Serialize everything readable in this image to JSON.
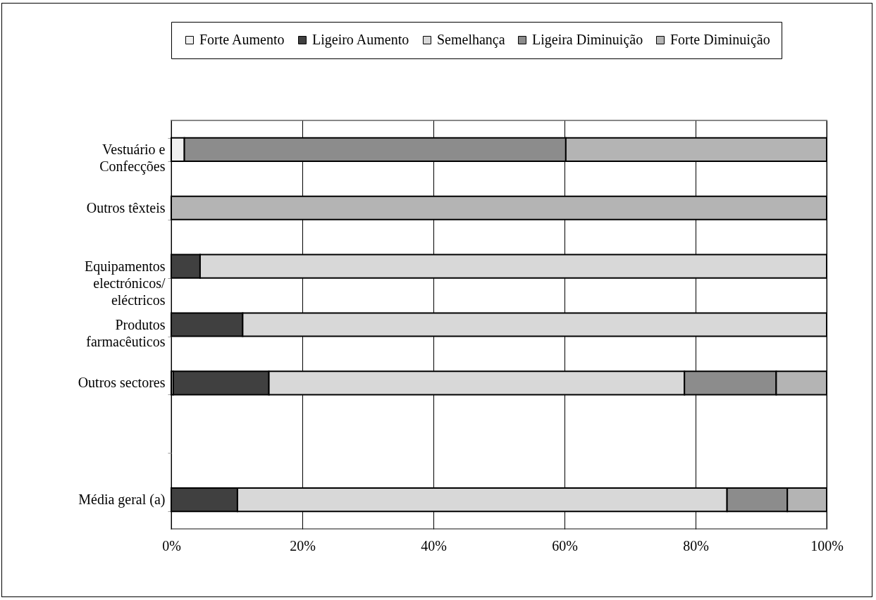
{
  "chart_data": {
    "type": "bar",
    "orientation": "horizontal",
    "stacked": true,
    "categories": [
      "Vestuário e Confecções",
      "Outros têxteis",
      "Equipamentos electrónicos/ eléctricos",
      "Produtos farmacêuticos",
      "Outros sectores",
      null,
      "Média geral (a)"
    ],
    "series": [
      {
        "name": "Forte Aumento",
        "color": "#f0f0f0",
        "values": [
          2,
          0,
          0,
          0,
          0.3,
          null,
          0
        ]
      },
      {
        "name": "Ligeiro Aumento",
        "color": "#404040",
        "values": [
          0,
          0,
          4.4,
          10.9,
          14.6,
          null,
          10.1
        ]
      },
      {
        "name": "Semelhança",
        "color": "#d8d8d8",
        "values": [
          0,
          0,
          95.6,
          89.1,
          63.4,
          null,
          74.7
        ]
      },
      {
        "name": "Ligeira Diminuição",
        "color": "#8c8c8c",
        "values": [
          58.2,
          0,
          0,
          0,
          14,
          null,
          9.2
        ]
      },
      {
        "name": "Forte Diminuição",
        "color": "#b4b4b4",
        "values": [
          39.8,
          100,
          0,
          0,
          7.7,
          null,
          6
        ]
      }
    ],
    "xlim": [
      0,
      100
    ],
    "xticks": [
      {
        "value": 0,
        "label": "0%"
      },
      {
        "value": 20,
        "label": "20%"
      },
      {
        "value": 40,
        "label": "40%"
      },
      {
        "value": 60,
        "label": "60%"
      },
      {
        "value": 80,
        "label": "80%"
      },
      {
        "value": 100,
        "label": "100%"
      }
    ],
    "grid": "x",
    "legend": "top"
  }
}
